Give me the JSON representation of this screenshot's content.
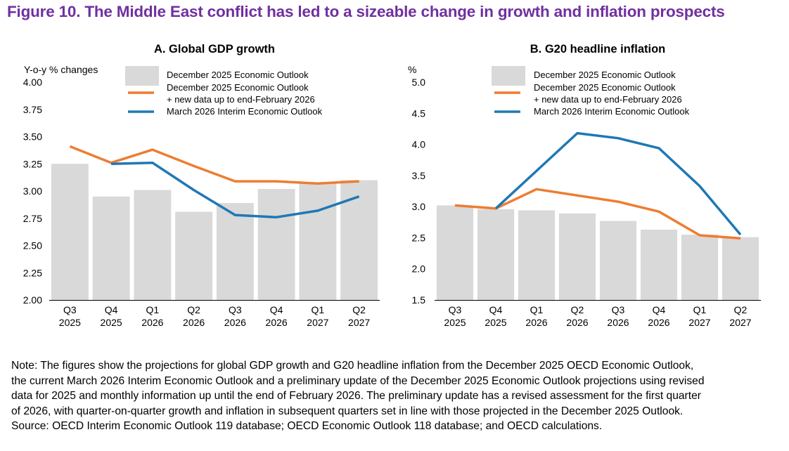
{
  "figure_title": "Figure  10. The Middle East conflict has led to a sizeable change in growth and inflation prospects",
  "legend": {
    "bars": "December 2025 Economic Outlook",
    "orange_line1": "December 2025 Economic Outlook",
    "orange_line2": "+ new data up to end-February 2026",
    "blue": "March 2026 Interim Economic Outlook"
  },
  "colors": {
    "bars": "#d9d9d9",
    "orange": "#ed7d31",
    "blue": "#1f78b4",
    "title": "#7030a0"
  },
  "chart_data": [
    {
      "type": "bar",
      "title": "A. Global GDP growth",
      "ylabel": "Y-o-y % changes",
      "xlabel": "",
      "ylim": [
        2.0,
        4.0
      ],
      "yticks": [
        "2.00",
        "2.25",
        "2.50",
        "2.75",
        "3.00",
        "3.25",
        "3.50",
        "3.75",
        "4.00"
      ],
      "categories": [
        [
          "Q3",
          "2025"
        ],
        [
          "Q4",
          "2025"
        ],
        [
          "Q1",
          "2026"
        ],
        [
          "Q2",
          "2026"
        ],
        [
          "Q3",
          "2026"
        ],
        [
          "Q4",
          "2026"
        ],
        [
          "Q1",
          "2027"
        ],
        [
          "Q2",
          "2027"
        ]
      ],
      "series": [
        {
          "name": "December 2025 Economic Outlook",
          "kind": "bar",
          "values": [
            3.25,
            2.95,
            3.01,
            2.81,
            2.89,
            3.02,
            3.07,
            3.1
          ]
        },
        {
          "name": "December 2025 Economic Outlook + new data up to end-February 2026",
          "kind": "line",
          "values": [
            3.41,
            3.26,
            3.38,
            3.23,
            3.09,
            3.09,
            3.07,
            3.09
          ]
        },
        {
          "name": "March 2026 Interim Economic Outlook",
          "kind": "line",
          "values": [
            null,
            3.25,
            3.26,
            3.01,
            2.78,
            2.76,
            2.82,
            2.95
          ]
        }
      ]
    },
    {
      "type": "bar",
      "title": "B. G20 headline inflation",
      "ylabel": "%",
      "xlabel": "",
      "ylim": [
        1.5,
        5.0
      ],
      "yticks": [
        "1.5",
        "2.0",
        "2.5",
        "3.0",
        "3.5",
        "4.0",
        "4.5",
        "5.0"
      ],
      "categories": [
        [
          "Q3",
          "2025"
        ],
        [
          "Q4",
          "2025"
        ],
        [
          "Q1",
          "2026"
        ],
        [
          "Q2",
          "2026"
        ],
        [
          "Q3",
          "2026"
        ],
        [
          "Q4",
          "2026"
        ],
        [
          "Q1",
          "2027"
        ],
        [
          "Q2",
          "2027"
        ]
      ],
      "series": [
        {
          "name": "December 2025 Economic Outlook",
          "kind": "bar",
          "values": [
            3.02,
            2.96,
            2.94,
            2.89,
            2.77,
            2.63,
            2.55,
            2.51
          ]
        },
        {
          "name": "December 2025 Economic Outlook + new data up to end-February 2026",
          "kind": "line",
          "values": [
            3.02,
            2.97,
            3.28,
            null,
            3.08,
            2.92,
            2.54,
            2.49
          ]
        },
        {
          "name": "March 2026 Interim Economic Outlook",
          "kind": "line",
          "values": [
            null,
            2.97,
            null,
            4.18,
            4.1,
            3.94,
            3.33,
            2.55
          ]
        }
      ]
    }
  ],
  "note": [
    "Note: The figures show the projections for global GDP growth and G20 headline inflation from the December 2025 OECD Economic Outlook,",
    "the current March 2026 Interim Economic Outlook and a preliminary update of the December 2025 Economic Outlook projections using revised",
    "data for 2025 and monthly information up until the end of February 2026. The preliminary update has a revised assessment for the first quarter",
    "of 2026, with quarter-on-quarter growth and inflation in subsequent quarters set in line with those projected in the December 2025 Outlook.",
    "Source: OECD Interim Economic Outlook 119 database; OECD Economic Outlook 118 database; and OECD calculations."
  ]
}
